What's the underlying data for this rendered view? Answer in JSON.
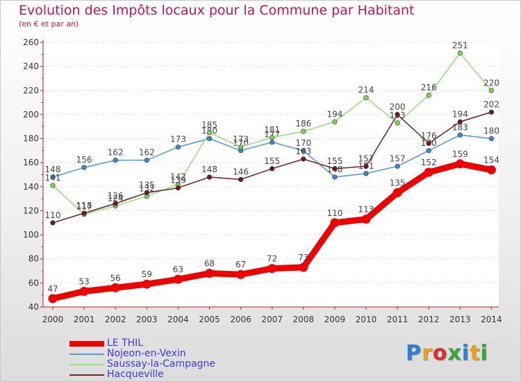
{
  "title": "Evolution des Impôts locaux pour la Commune par Habitant",
  "subtitle": "(en € et par an)",
  "logo": {
    "text": "Proxiti",
    "colors": [
      "#2f7fd3",
      "#e8a21c",
      "#d8322b",
      "#3aa53a",
      "#2f7fd3",
      "#e8a21c",
      "#3aa53a"
    ]
  },
  "chart_data": {
    "type": "line",
    "x": [
      2000,
      2001,
      2002,
      2003,
      2004,
      2005,
      2006,
      2007,
      2008,
      2009,
      2010,
      2011,
      2012,
      2013,
      2014
    ],
    "ylim": [
      40,
      260
    ],
    "yticks": [
      40,
      60,
      80,
      100,
      120,
      140,
      160,
      180,
      200,
      220,
      240,
      260
    ],
    "grid": "horizontal",
    "title": "Evolution des Impôts locaux pour la Commune par Habitant",
    "xlabel": "",
    "ylabel": "(en € et par an)",
    "series": [
      {
        "name": "Nojeon-en-Vexin",
        "color": "#5b9bd5",
        "point_color": "#3f86cc",
        "values": [
          148,
          156,
          162,
          162,
          173,
          180,
          170,
          177,
          170,
          148,
          151,
          157,
          170,
          183,
          180
        ],
        "labels": [
          "148",
          "156",
          "162",
          "162",
          "173",
          "180",
          "170",
          "177",
          "170",
          "148",
          "151",
          "157",
          "170",
          "183",
          "180"
        ]
      },
      {
        "name": "Saussay-la-Campagne",
        "color": "#99e07a",
        "point_color": "#7fd155",
        "values": [
          141,
          117,
          124,
          132,
          142,
          185,
          173,
          181,
          186,
          194,
          214,
          193,
          216,
          251,
          220
        ],
        "labels": [
          "141",
          "117",
          "124",
          "132",
          "142",
          "185",
          "173",
          "181",
          "186",
          "194",
          "214",
          "193",
          "216",
          "251",
          "220"
        ]
      },
      {
        "name": "Hacqueville",
        "color": "#6e2a2a",
        "point_color": "#6a1c1c",
        "values": [
          110,
          118,
          126,
          135,
          139,
          148,
          146,
          155,
          163,
          155,
          157,
          200,
          176,
          194,
          202
        ],
        "labels": [
          "110",
          "118",
          "126",
          "135",
          "139",
          "148",
          "146",
          "155",
          "163",
          "155",
          "157",
          "200",
          "176",
          "194",
          "202"
        ]
      },
      {
        "name": "LE THIL",
        "color": "#ee0000",
        "point_color": "#ee0000",
        "values": [
          47,
          53,
          56,
          59,
          63,
          68,
          67,
          72,
          73,
          110,
          113,
          135,
          152,
          159,
          154
        ],
        "labels": [
          "47",
          "53",
          "56",
          "59",
          "63",
          "68",
          "67",
          "72",
          "73",
          "110",
          "113",
          "135",
          "152",
          "159",
          "154"
        ]
      }
    ],
    "legend": {
      "placement": "bottom-left",
      "items": [
        {
          "name": "LE THIL",
          "color": "#ee0000"
        },
        {
          "name": "Nojeon-en-Vexin",
          "color": "#5b9bd5"
        },
        {
          "name": "Saussay-la-Campagne",
          "color": "#99e07a"
        },
        {
          "name": "Hacqueville",
          "color": "#6e2a2a"
        }
      ]
    }
  }
}
